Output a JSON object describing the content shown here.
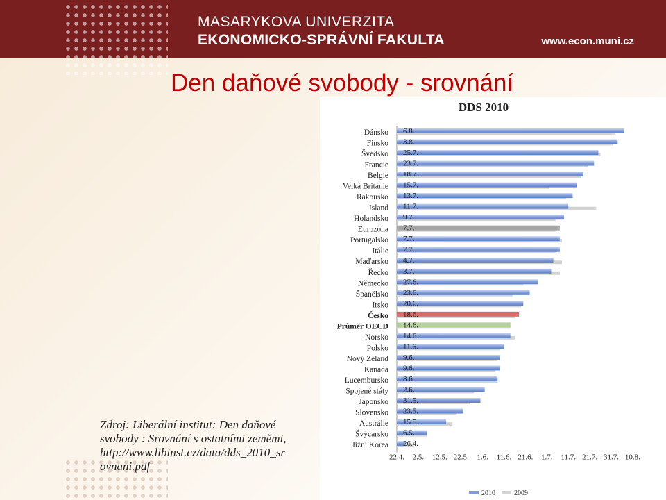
{
  "header": {
    "university": "MASARYKOVA UNIVERZITA",
    "faculty": "EKONOMICKO-SPRÁVNÍ FAKULTA",
    "website": "www.econ.muni.cz"
  },
  "slide": {
    "title": "Den daňové svobody - srovnání",
    "source_lines": [
      "Zdroj: Liberální institut: Den daňové",
      "svobody : Srovnání s ostatními zeměmi,",
      "http://www.libinst.cz/data/dds_2010_sr",
      "ovnani.pdf"
    ]
  },
  "colors": {
    "header_bg": "#7a1f1f",
    "title": "#c00000",
    "bar_2010": "#7f9bd9",
    "bar_2009": "#d4d4d4",
    "bar_eurozone": "#a6a6a6",
    "bar_czech": "#d96b6b",
    "bar_oecd": "#b5d19c"
  },
  "chart_data": {
    "type": "bar",
    "orientation": "horizontal",
    "title": "DDS 2010",
    "categories": [
      "Dánsko",
      "Finsko",
      "Švédsko",
      "Francie",
      "Belgie",
      "Velká Británie",
      "Rakousko",
      "Island",
      "Holandsko",
      "Eurozóna",
      "Portugalsko",
      "Itálie",
      "Maďarsko",
      "Řecko",
      "Německo",
      "Španělsko",
      "Irsko",
      "Česko",
      "Průměr OECD",
      "Norsko",
      "Polsko",
      "Nový Zéland",
      "Kanada",
      "Lucembursko",
      "Spojené státy",
      "Japonsko",
      "Slovensko",
      "Austrálie",
      "Švýcarsko",
      "Jižní Korea"
    ],
    "bold_categories": [
      "Česko",
      "Průměr OECD"
    ],
    "data_labels": [
      "6.8.",
      "3.8.",
      "25.7.",
      "23.7.",
      "18.7.",
      "15.7.",
      "13.7.",
      "11.7.",
      "9.7.",
      "7.7.",
      "7.7.",
      "7.7.",
      "4.7.",
      "3.7.",
      "27.6.",
      "23.6.",
      "20.6.",
      "18.6.",
      "14.6.",
      "14.6.",
      "11.6.",
      "9.6.",
      "9.6.",
      "8.6.",
      "2.6.",
      "31.5.",
      "23.5.",
      "15.5.",
      "6.5.",
      "26.4."
    ],
    "x_ticks": [
      "22.4.",
      "2.5.",
      "12.5.",
      "22.5.",
      "1.6.",
      "11.6.",
      "21.6.",
      "1.7.",
      "11.7.",
      "21.7.",
      "31.7.",
      "10.8."
    ],
    "xlim": [
      "22.4.",
      "10.8."
    ],
    "series": [
      {
        "name": "2010",
        "values": [
          "6.8.",
          "3.8.",
          "25.7.",
          "23.7.",
          "18.7.",
          "15.7.",
          "13.7.",
          "11.7.",
          "9.7.",
          "7.7.",
          "7.7.",
          "7.7.",
          "4.7.",
          "3.7.",
          "27.6.",
          "23.6.",
          "20.6.",
          "18.6.",
          "14.6.",
          "14.6.",
          "11.6.",
          "9.6.",
          "9.6.",
          "8.6.",
          "2.6.",
          "31.5.",
          "23.5.",
          "15.5.",
          "6.5.",
          "26.4."
        ]
      },
      {
        "name": "2009",
        "values": [
          "2.8.",
          "1.8.",
          "26.7.",
          "20.7.",
          "17.7.",
          "2.7.",
          "10.7.",
          "24.7.",
          "5.7.",
          "5.7.",
          "8.7.",
          "5.7.",
          "8.7.",
          "7.7.",
          "20.6.",
          "15.6.",
          "19.6.",
          "16.6.",
          "14.6.",
          "16.6.",
          "9.6.",
          "8.6.",
          "7.6.",
          "8.6.",
          "28.5.",
          "26.5.",
          "20.5.",
          "18.5.",
          "6.5.",
          "30.4."
        ]
      }
    ],
    "legend": {
      "position": "bottom-right",
      "entries": [
        "2010",
        "2009"
      ]
    },
    "grid": false
  }
}
